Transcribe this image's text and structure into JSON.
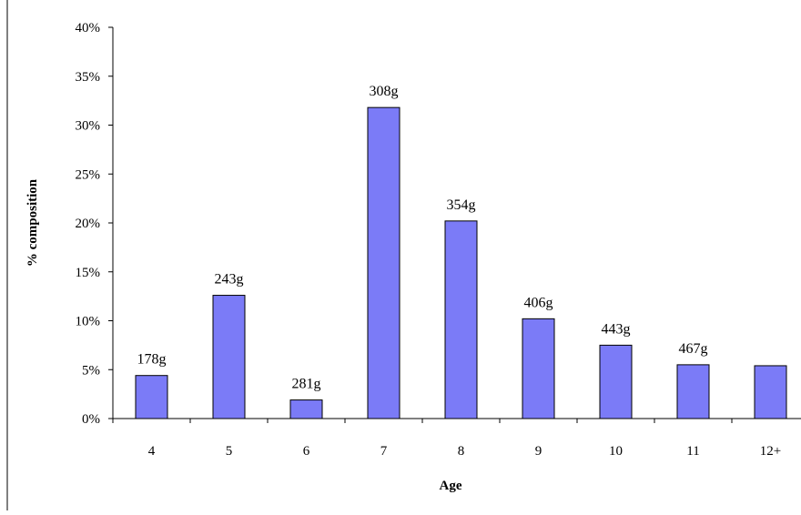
{
  "chart_data": {
    "type": "bar",
    "title": "",
    "xlabel": "Age",
    "ylabel": "% composition",
    "categories": [
      "4",
      "5",
      "6",
      "7",
      "8",
      "9",
      "10",
      "11",
      "12+"
    ],
    "values": [
      4.4,
      12.6,
      1.9,
      31.8,
      20.2,
      10.2,
      7.5,
      5.5,
      5.4
    ],
    "data_labels": [
      "178g",
      "243g",
      "281g",
      "308g",
      "354g",
      "406g",
      "443g",
      "467g",
      ""
    ],
    "ylim": [
      0,
      40
    ],
    "yticks": [
      0,
      5,
      10,
      15,
      20,
      25,
      30,
      35,
      40
    ],
    "ytick_labels": [
      "0%",
      "5%",
      "10%",
      "15%",
      "20%",
      "25%",
      "30%",
      "35%",
      "40%"
    ],
    "grid": false,
    "legend": "none",
    "bar_color": "#7B7BF7",
    "bar_edge_color": "#000000"
  }
}
